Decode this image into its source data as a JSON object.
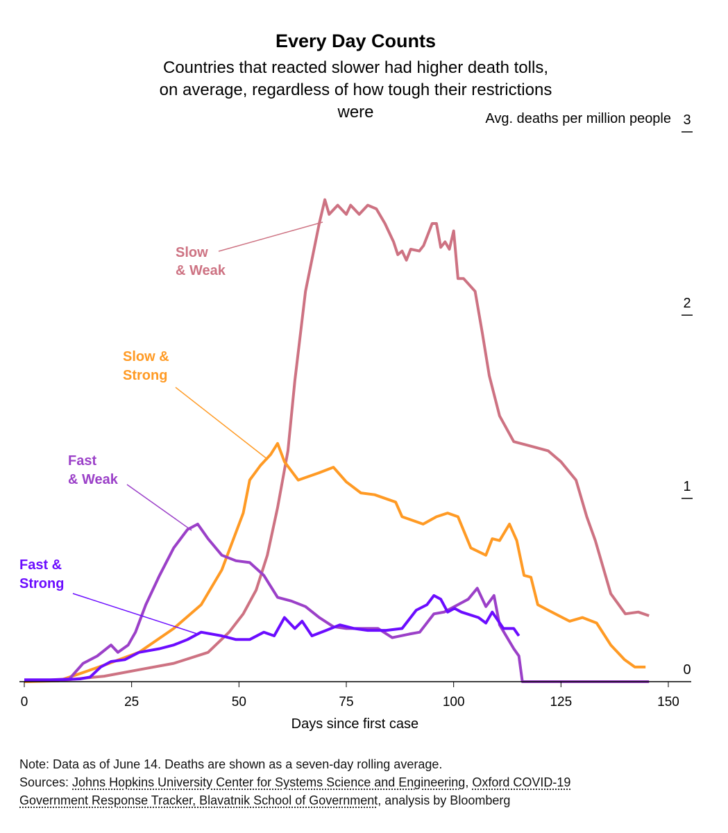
{
  "chart_data": {
    "type": "line",
    "title": "Every Day Counts",
    "subtitle": "Countries that reacted slower had higher death tolls, on average, regardless of how tough their restrictions were",
    "xlabel": "Days since first case",
    "ylabel": "Avg. deaths per million people",
    "xlim": [
      0,
      150
    ],
    "ylim": [
      0,
      3
    ],
    "xticks": [
      "0",
      "25",
      "50",
      "75",
      "100",
      "125",
      "150"
    ],
    "yticks": [
      "0",
      "1",
      "2",
      "3"
    ],
    "grid": false,
    "legend": "inline labels",
    "series": [
      {
        "name": "Slow & Weak",
        "color": "#cd7282",
        "x": [
          0,
          10,
          18.6,
          26.7,
          34.8,
          42.8,
          47.7,
          51,
          54,
          56.6,
          59,
          61.4,
          63,
          65.5,
          68.7,
          70,
          71,
          73,
          75,
          76,
          78,
          80,
          82,
          84,
          86,
          87,
          88,
          89,
          90,
          92,
          93,
          95,
          96,
          97,
          98,
          99,
          100,
          101,
          102.3,
          105,
          106.7,
          108.3,
          110.7,
          114,
          118.8,
          122,
          125,
          128.5,
          131,
          133,
          136.6,
          140,
          143,
          145.5
        ],
        "y": [
          0,
          0.01,
          0.03,
          0.065,
          0.1,
          0.16,
          0.27,
          0.37,
          0.5,
          0.69,
          0.95,
          1.26,
          1.64,
          2.13,
          2.5,
          2.63,
          2.55,
          2.6,
          2.55,
          2.6,
          2.55,
          2.6,
          2.58,
          2.5,
          2.4,
          2.33,
          2.35,
          2.3,
          2.36,
          2.35,
          2.38,
          2.5,
          2.5,
          2.37,
          2.4,
          2.36,
          2.46,
          2.2,
          2.2,
          2.13,
          1.9,
          1.67,
          1.45,
          1.31,
          1.28,
          1.26,
          1.2,
          1.1,
          0.9,
          0.77,
          0.48,
          0.37,
          0.38,
          0.36
        ]
      },
      {
        "name": "Slow & Strong",
        "color": "#ff9a24",
        "x": [
          0,
          8,
          13.7,
          18.6,
          26.7,
          34.8,
          41.2,
          46,
          51,
          52.5,
          55,
          57.4,
          59,
          60.6,
          63.8,
          68.7,
          72,
          75,
          78.4,
          81.6,
          86.5,
          88,
          92.9,
          96,
          98.6,
          101,
          104,
          107.5,
          109,
          110.7,
          113,
          114.7,
          116.4,
          118,
          119.6,
          122,
          127,
          130,
          133.3,
          136.6,
          139.8,
          142.2,
          144.7
        ],
        "y": [
          0,
          0.005,
          0.05,
          0.09,
          0.16,
          0.29,
          0.42,
          0.61,
          0.92,
          1.1,
          1.18,
          1.24,
          1.3,
          1.2,
          1.1,
          1.14,
          1.17,
          1.09,
          1.03,
          1.02,
          0.98,
          0.9,
          0.86,
          0.9,
          0.92,
          0.9,
          0.73,
          0.69,
          0.78,
          0.77,
          0.86,
          0.77,
          0.58,
          0.57,
          0.42,
          0.39,
          0.33,
          0.35,
          0.32,
          0.2,
          0.12,
          0.08,
          0.08
        ]
      },
      {
        "name": "Fast & Weak",
        "color": "#9b40c8",
        "x": [
          0,
          6,
          10.5,
          13.7,
          17,
          20.2,
          21.8,
          24.2,
          25.9,
          28.3,
          31.5,
          34.8,
          38,
          40.4,
          42.8,
          46,
          49.3,
          52.5,
          55.8,
          59,
          62.2,
          65.5,
          68.7,
          72,
          75,
          78.4,
          82.4,
          85.7,
          89.7,
          92.1,
          95.4,
          97.8,
          101,
          103.4,
          105.5,
          107.5,
          109.4,
          110.7,
          114,
          115.2,
          116,
          120,
          130,
          140,
          145.5
        ],
        "y": [
          0.01,
          0.01,
          0.015,
          0.1,
          0.14,
          0.2,
          0.16,
          0.2,
          0.27,
          0.42,
          0.58,
          0.73,
          0.83,
          0.86,
          0.78,
          0.69,
          0.66,
          0.65,
          0.58,
          0.46,
          0.44,
          0.41,
          0.35,
          0.3,
          0.29,
          0.29,
          0.29,
          0.24,
          0.26,
          0.27,
          0.37,
          0.38,
          0.42,
          0.45,
          0.51,
          0.41,
          0.47,
          0.31,
          0.18,
          0.14,
          0,
          0,
          0,
          0,
          0
        ]
      },
      {
        "name": "Fast & Strong",
        "color": "#6b0cff",
        "x": [
          0,
          8,
          13,
          15.3,
          17.8,
          20.2,
          23.4,
          26.7,
          31.5,
          34.8,
          38,
          41.2,
          46,
          49.3,
          52.5,
          55.8,
          58.2,
          60.6,
          63,
          64.7,
          67,
          70.3,
          73.5,
          76.8,
          80,
          84.3,
          88,
          91.3,
          93.8,
          95.4,
          97,
          98.6,
          100.2,
          101.8,
          105.8,
          107.5,
          109,
          111.6,
          114,
          115.2
        ],
        "y": [
          0.01,
          0.01,
          0.015,
          0.025,
          0.08,
          0.11,
          0.12,
          0.16,
          0.18,
          0.2,
          0.23,
          0.27,
          0.25,
          0.23,
          0.23,
          0.27,
          0.25,
          0.35,
          0.29,
          0.33,
          0.25,
          0.28,
          0.31,
          0.29,
          0.28,
          0.28,
          0.29,
          0.39,
          0.42,
          0.47,
          0.45,
          0.38,
          0.4,
          0.38,
          0.35,
          0.32,
          0.38,
          0.29,
          0.29,
          0.25
        ]
      }
    ]
  },
  "labels": {
    "slow_weak": [
      "Slow",
      "& Weak"
    ],
    "slow_strong": [
      "Slow &",
      "Strong"
    ],
    "fast_weak": [
      "Fast",
      "& Weak"
    ],
    "fast_strong": [
      "Fast &",
      "Strong"
    ]
  },
  "footer": {
    "note": "Note: Data as of June 14. Deaths are shown as a seven-day rolling average.",
    "sources_prefix": "Sources: ",
    "source1": "Johns Hopkins University Center for Systems Science and Engineering",
    "sep": ", ",
    "source2a": "Oxford COVID-19",
    "source2b": "Government Response Tracker, Blavatnik School of Government",
    "suffix": ", analysis by Bloomberg"
  }
}
